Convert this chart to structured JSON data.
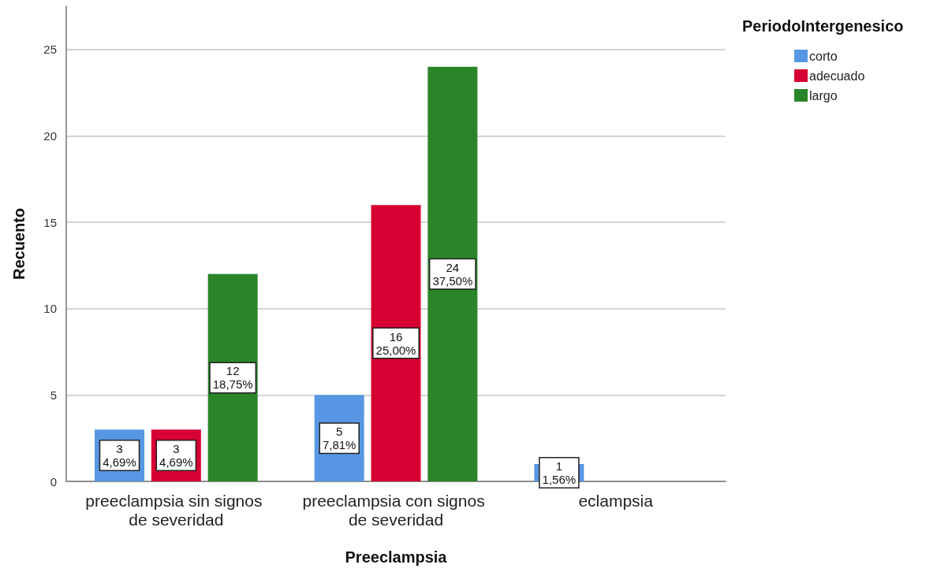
{
  "chart_data": {
    "type": "bar",
    "categories": [
      "preeclampsia sin signos de severidad",
      "preeclampsia con signos de severidad",
      "eclampsia"
    ],
    "series": [
      {
        "name": "corto",
        "color": "#5797e3",
        "values": [
          3,
          5,
          1
        ],
        "value_labels": [
          "3\n4,69%",
          "5\n7,81%",
          "1\n1,56%"
        ]
      },
      {
        "name": "adecuado",
        "color": "#d60033",
        "values": [
          3,
          16,
          null
        ],
        "value_labels": [
          "3\n4,69%",
          "16\n25,00%",
          null
        ]
      },
      {
        "name": "largo",
        "color": "#2a8528",
        "values": [
          12,
          24,
          null
        ],
        "value_labels": [
          "12\n18,75%",
          "24\n37,50%",
          null
        ]
      }
    ],
    "xlabel": "Preeclampsia",
    "ylabel": "Recuento",
    "legend_title": "PeriodoIntergenesico",
    "ylim": [
      0,
      27.5
    ],
    "yticks": [
      0,
      5,
      10,
      15,
      20,
      25
    ],
    "grid": "y",
    "legend": "top right"
  }
}
